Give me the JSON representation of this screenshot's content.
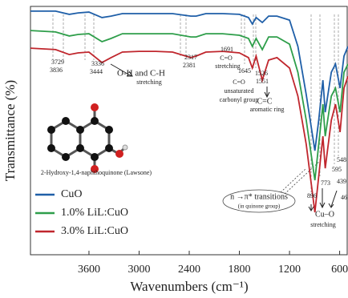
{
  "chart_data": {
    "type": "line",
    "xlabel": "Wavenumbers (cm⁻¹)",
    "ylabel": "Transmittance (%)",
    "x": [
      4300,
      4000,
      3836,
      3729,
      3600,
      3444,
      3336,
      3200,
      3000,
      2800,
      2600,
      2381,
      2317,
      2200,
      2000,
      1800,
      1691,
      1645,
      1600,
      1526,
      1450,
      1350,
      1200,
      1100,
      1000,
      896,
      850,
      800,
      773,
      700,
      650,
      595,
      548,
      500
    ],
    "series": [
      {
        "name": "CuO",
        "color": "#1f5fa8",
        "values": [
          98.1,
          98.1,
          96.8,
          97.4,
          97.7,
          95.5,
          96.1,
          97.1,
          97.1,
          97.1,
          97.1,
          96.1,
          96.1,
          97.1,
          97.1,
          96.8,
          95.5,
          92.9,
          95.5,
          93.5,
          96.1,
          96.1,
          94.5,
          83.9,
          64.5,
          41.9,
          54.2,
          70.3,
          57.4,
          73.5,
          76.8,
          67.1,
          80.0,
          83.9
        ]
      },
      {
        "name": "1.0% LiL:CuO",
        "color": "#2e9e4a",
        "values": [
          90.3,
          89.7,
          88.1,
          88.7,
          89.0,
          85.8,
          87.1,
          89.0,
          89.0,
          89.0,
          89.0,
          87.7,
          87.7,
          89.0,
          89.0,
          88.4,
          87.1,
          83.9,
          87.1,
          82.6,
          87.7,
          87.7,
          84.8,
          73.5,
          54.2,
          30.0,
          44.5,
          60.6,
          47.7,
          63.9,
          67.1,
          57.4,
          73.5,
          76.8
        ]
      },
      {
        "name": "3.0% LiL:CuO",
        "color": "#c0262d",
        "values": [
          83.2,
          82.6,
          80.6,
          81.3,
          81.6,
          77.4,
          79.4,
          81.6,
          81.9,
          81.9,
          81.6,
          79.4,
          80.0,
          81.6,
          81.9,
          81.3,
          79.4,
          75.2,
          80.0,
          70.3,
          78.4,
          79.4,
          75.2,
          63.9,
          44.5,
          17.1,
          31.6,
          47.7,
          34.8,
          54.2,
          60.6,
          49.4,
          67.1,
          71.9
        ]
      }
    ],
    "xlim": [
      4300,
      500
    ],
    "ylim": [
      0,
      100
    ],
    "xticks": [
      3600,
      3000,
      2400,
      1800,
      1200,
      600
    ],
    "annotations": [
      "3729",
      "3836",
      "3336",
      "3444",
      "O-H and C-H",
      "stretching",
      "2317",
      "2381",
      "1691",
      "C=O",
      "stretching",
      "C=O",
      "unsaturated",
      "carbonyl group",
      "1645",
      "1526",
      "1551",
      "C=C",
      "aromatic ring",
      "548",
      "595",
      "439",
      "773",
      "896",
      "46",
      "n →π* transitions",
      "(in quinone group)",
      "Cu–O",
      "stretching",
      "2-Hydroxy-1,4-naphthoquinone (Lawsone)"
    ]
  }
}
